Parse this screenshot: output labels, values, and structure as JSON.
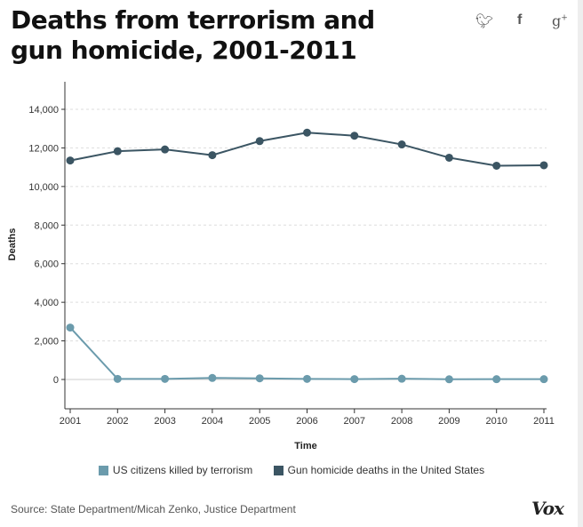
{
  "title": "Deaths from terrorism and gun homicide, 2001-2011",
  "share": {
    "twitter": "twitter-icon",
    "facebook": "facebook-icon",
    "googleplus": "google-plus-icon"
  },
  "chart_data": {
    "type": "line",
    "title": "Deaths from terrorism and gun homicide, 2001-2011",
    "xlabel": "Time",
    "ylabel": "Deaths",
    "x": [
      2001,
      2002,
      2003,
      2004,
      2005,
      2006,
      2007,
      2008,
      2009,
      2010,
      2011
    ],
    "ylim": [
      -1500,
      15400
    ],
    "yticks": [
      0,
      2000,
      4000,
      6000,
      8000,
      10000,
      12000,
      14000
    ],
    "ytick_labels": [
      "0",
      "2,000",
      "4,000",
      "6,000",
      "8,000",
      "10,000",
      "12,000",
      "14,000"
    ],
    "xtick_labels": [
      "2001",
      "2002",
      "2003",
      "2004",
      "2005",
      "2006",
      "2007",
      "2008",
      "2009",
      "2010",
      "2011"
    ],
    "grid": true,
    "legend": "bottom",
    "series": [
      {
        "name": "US citizens killed by terrorism",
        "color": "#6b9bac",
        "values": [
          2689,
          30,
          30,
          80,
          60,
          30,
          20,
          40,
          10,
          15,
          17
        ]
      },
      {
        "name": "Gun homicide deaths in the United States",
        "color": "#3b5563",
        "values": [
          11348,
          11829,
          11920,
          11624,
          12352,
          12791,
          12632,
          12179,
          11493,
          11078,
          11101
        ]
      }
    ]
  },
  "source": "Source: State Department/Micah Zenko, Justice Department",
  "logo": "Vox"
}
